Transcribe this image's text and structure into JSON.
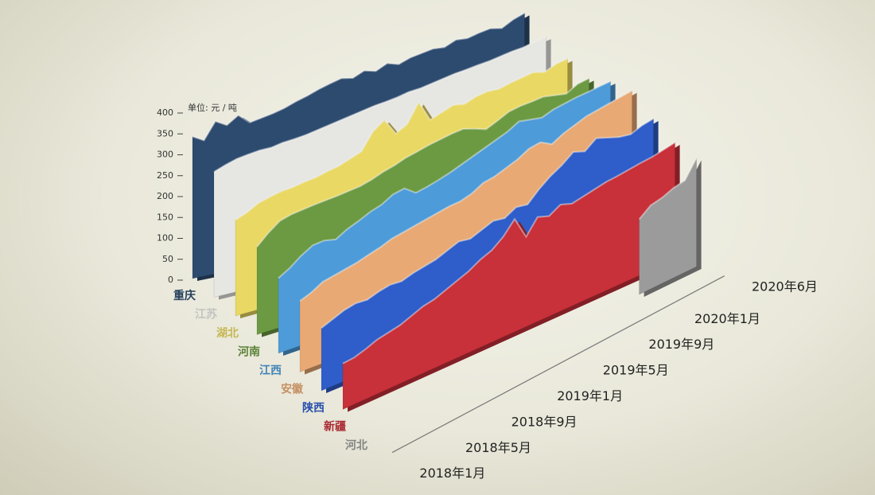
{
  "chart_data": {
    "type": "area3d",
    "y_unit": "单位: 元 / 吨",
    "ylim": [
      0,
      400
    ],
    "yticks": [
      0,
      50,
      100,
      150,
      200,
      250,
      300,
      350,
      400
    ],
    "categories": [
      "2018年1月",
      null,
      null,
      null,
      "2018年5月",
      null,
      null,
      null,
      "2018年9月",
      null,
      null,
      null,
      "2019年1月",
      null,
      null,
      null,
      "2019年5月",
      null,
      null,
      null,
      "2019年9月",
      null,
      null,
      null,
      "2020年1月",
      null,
      null,
      null,
      null,
      "2020年6月"
    ],
    "series": [
      {
        "name": "重庆",
        "color": "#2d4b6f",
        "values": [
          340,
          325,
          365,
          350,
          368,
          345,
          350,
          355,
          362,
          372,
          380,
          390,
          398,
          405,
          400,
          412,
          405,
          418,
          410,
          420,
          425,
          430,
          428,
          440,
          438,
          445,
          450,
          445,
          460,
          470
        ]
      },
      {
        "name": "江苏",
        "color": "#e6e6e3",
        "values": [
          300,
          310,
          318,
          322,
          325,
          325,
          330,
          332,
          335,
          340,
          345,
          350,
          355,
          360,
          365,
          368,
          372,
          378,
          380,
          385,
          390,
          395,
          398,
          402,
          405,
          410,
          415,
          418,
          425,
          430
        ]
      },
      {
        "name": "湖北",
        "color": "#e9d863",
        "values": [
          230,
          240,
          255,
          262,
          268,
          270,
          275,
          278,
          285,
          290,
          300,
          310,
          350,
          370,
          330,
          345,
          390,
          340,
          350,
          360,
          355,
          365,
          370,
          368,
          375,
          380,
          385,
          378,
          390,
          395
        ]
      },
      {
        "name": "河南",
        "color": "#6b9a42",
        "values": [
          210,
          235,
          255,
          262,
          265,
          268,
          270,
          272,
          275,
          278,
          285,
          295,
          302,
          312,
          318,
          325,
          330,
          335,
          338,
          330,
          320,
          332,
          345,
          350,
          352,
          355,
          350,
          345,
          360,
          365
        ]
      },
      {
        "name": "江西",
        "color": "#4d9bd9",
        "values": [
          180,
          195,
          215,
          230,
          232,
          225,
          240,
          250,
          262,
          270,
          285,
          290,
          270,
          275,
          282,
          290,
          300,
          310,
          320,
          330,
          340,
          355,
          350,
          345,
          355,
          360,
          365,
          368,
          372,
          375
        ]
      },
      {
        "name": "安徽",
        "color": "#e8a974",
        "values": [
          170,
          180,
          195,
          200,
          205,
          210,
          218,
          225,
          235,
          240,
          245,
          250,
          255,
          260,
          262,
          270,
          285,
          290,
          300,
          310,
          325,
          330,
          315,
          330,
          340,
          350,
          355,
          360,
          365,
          370
        ]
      },
      {
        "name": "陕西",
        "color": "#2f5dc9",
        "values": [
          150,
          160,
          170,
          175,
          172,
          180,
          185,
          182,
          190,
          195,
          200,
          210,
          220,
          215,
          225,
          235,
          230,
          245,
          240,
          265,
          285,
          300,
          320,
          310,
          330,
          320,
          310,
          305,
          315,
          320
        ]
      },
      {
        "name": "新疆",
        "color": "#c8303a",
        "values": [
          110,
          112,
          120,
          130,
          135,
          140,
          150,
          160,
          165,
          175,
          185,
          195,
          210,
          220,
          240,
          270,
          215,
          250,
          240,
          255,
          245,
          250,
          255,
          260,
          262,
          265,
          268,
          270,
          275,
          280
        ]
      },
      {
        "name": "河北",
        "color": "#9b9b9b",
        "values": [
          null,
          null,
          null,
          null,
          null,
          null,
          null,
          null,
          null,
          null,
          null,
          null,
          null,
          null,
          null,
          null,
          null,
          null,
          null,
          null,
          null,
          null,
          null,
          null,
          180,
          200,
          205,
          215,
          220,
          260
        ]
      }
    ]
  }
}
